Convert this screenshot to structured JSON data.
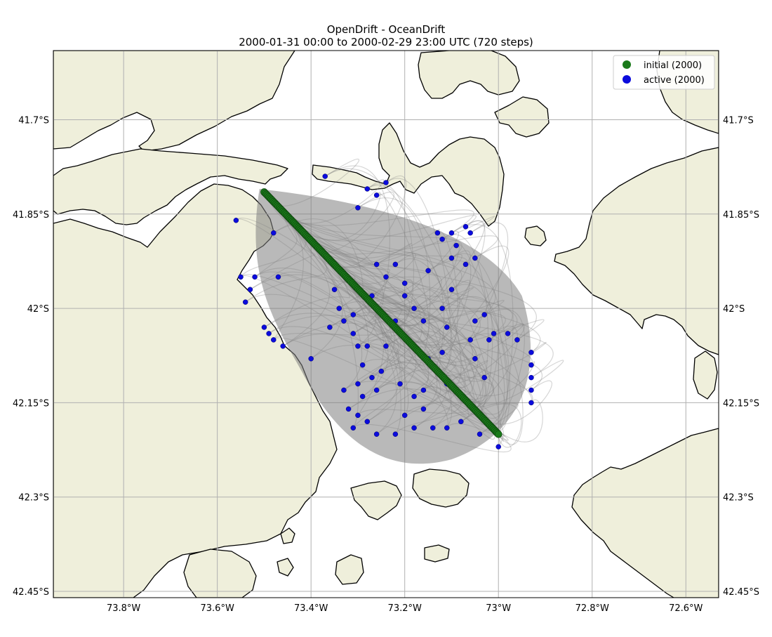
{
  "chart_data": {
    "type": "scatter",
    "title_lines": [
      "OpenDrift - OceanDrift",
      "2000-01-31 00:00 to 2000-02-29 23:00 UTC (720 steps)"
    ],
    "xlabel": "",
    "ylabel": "",
    "xlim": [
      -73.95,
      -72.53
    ],
    "ylim": [
      -42.46,
      -41.59
    ],
    "grid": true,
    "legend_placement": "top-right",
    "x_ticks": [
      {
        "value": -73.8,
        "label": "73.8°W"
      },
      {
        "value": -73.6,
        "label": "73.6°W"
      },
      {
        "value": -73.4,
        "label": "73.4°W"
      },
      {
        "value": -73.2,
        "label": "73.2°W"
      },
      {
        "value": -73.0,
        "label": "73°W"
      },
      {
        "value": -72.8,
        "label": "72.8°W"
      },
      {
        "value": -72.6,
        "label": "72.6°W"
      }
    ],
    "y_ticks": [
      {
        "value": -41.7,
        "label": "41.7°S"
      },
      {
        "value": -41.85,
        "label": "41.85°S"
      },
      {
        "value": -42.0,
        "label": "42°S"
      },
      {
        "value": -42.15,
        "label": "42.15°S"
      },
      {
        "value": -42.3,
        "label": "42.3°S"
      },
      {
        "value": -42.45,
        "label": "42.45°S"
      }
    ],
    "colors": {
      "land": "#efefdb",
      "ocean": "#ffffff",
      "coast": "#000000",
      "trajectory": "#808080",
      "initial": "#1a7a1a",
      "active": "#0b0bdc",
      "grid": "#b0b0b0"
    },
    "series": [
      {
        "name": "initial (2000)",
        "kind": "seed-line",
        "from": [
          -73.5,
          -41.815
        ],
        "to": [
          -73.0,
          -42.2
        ],
        "count": 200
      },
      {
        "name": "active (2000)",
        "kind": "points",
        "points": [
          [
            -73.37,
            -41.79
          ],
          [
            -73.28,
            -41.81
          ],
          [
            -73.26,
            -41.82
          ],
          [
            -73.3,
            -41.84
          ],
          [
            -73.24,
            -41.8
          ],
          [
            -73.56,
            -41.86
          ],
          [
            -73.48,
            -41.88
          ],
          [
            -73.52,
            -41.95
          ],
          [
            -73.55,
            -41.95
          ],
          [
            -73.53,
            -41.97
          ],
          [
            -73.54,
            -41.99
          ],
          [
            -73.47,
            -41.95
          ],
          [
            -73.5,
            -42.03
          ],
          [
            -73.49,
            -42.04
          ],
          [
            -73.48,
            -42.05
          ],
          [
            -73.46,
            -42.06
          ],
          [
            -73.4,
            -42.08
          ],
          [
            -73.35,
            -41.97
          ],
          [
            -73.36,
            -42.03
          ],
          [
            -73.34,
            -42.0
          ],
          [
            -73.33,
            -42.02
          ],
          [
            -73.31,
            -42.04
          ],
          [
            -73.3,
            -42.06
          ],
          [
            -73.29,
            -42.09
          ],
          [
            -73.3,
            -42.12
          ],
          [
            -73.29,
            -42.14
          ],
          [
            -73.3,
            -42.17
          ],
          [
            -73.32,
            -42.16
          ],
          [
            -73.33,
            -42.13
          ],
          [
            -73.31,
            -42.19
          ],
          [
            -73.28,
            -42.18
          ],
          [
            -73.26,
            -42.2
          ],
          [
            -73.22,
            -42.2
          ],
          [
            -73.18,
            -42.19
          ],
          [
            -73.14,
            -42.19
          ],
          [
            -73.11,
            -42.19
          ],
          [
            -73.08,
            -42.18
          ],
          [
            -73.05,
            -42.16
          ],
          [
            -73.03,
            -42.11
          ],
          [
            -73.02,
            -42.05
          ],
          [
            -73.01,
            -42.04
          ],
          [
            -73.03,
            -42.01
          ],
          [
            -73.05,
            -42.02
          ],
          [
            -73.06,
            -42.05
          ],
          [
            -73.05,
            -42.08
          ],
          [
            -73.11,
            -42.12
          ],
          [
            -73.12,
            -42.07
          ],
          [
            -73.11,
            -42.03
          ],
          [
            -73.12,
            -42.0
          ],
          [
            -73.1,
            -41.97
          ],
          [
            -73.16,
            -42.02
          ],
          [
            -73.18,
            -42.0
          ],
          [
            -73.2,
            -41.98
          ],
          [
            -73.22,
            -42.02
          ],
          [
            -73.24,
            -42.06
          ],
          [
            -73.25,
            -42.1
          ],
          [
            -73.21,
            -42.12
          ],
          [
            -73.18,
            -42.14
          ],
          [
            -73.16,
            -42.16
          ],
          [
            -73.2,
            -42.17
          ],
          [
            -73.26,
            -42.13
          ],
          [
            -73.27,
            -42.11
          ],
          [
            -73.28,
            -42.06
          ],
          [
            -73.31,
            -42.01
          ],
          [
            -73.27,
            -41.98
          ],
          [
            -73.24,
            -41.95
          ],
          [
            -73.26,
            -41.93
          ],
          [
            -73.22,
            -41.93
          ],
          [
            -73.2,
            -41.96
          ],
          [
            -73.15,
            -41.94
          ],
          [
            -73.1,
            -41.92
          ],
          [
            -73.07,
            -41.93
          ],
          [
            -73.05,
            -41.92
          ],
          [
            -72.93,
            -42.07
          ],
          [
            -72.93,
            -42.09
          ],
          [
            -72.93,
            -42.11
          ],
          [
            -72.93,
            -42.13
          ],
          [
            -72.93,
            -42.15
          ],
          [
            -72.96,
            -42.05
          ],
          [
            -72.98,
            -42.04
          ],
          [
            -73.0,
            -42.22
          ],
          [
            -73.04,
            -42.2
          ],
          [
            -73.12,
            -41.89
          ],
          [
            -73.09,
            -41.9
          ],
          [
            -73.1,
            -41.88
          ],
          [
            -73.07,
            -41.87
          ],
          [
            -73.13,
            -41.88
          ],
          [
            -73.06,
            -41.88
          ],
          [
            -73.15,
            -42.08
          ],
          [
            -73.16,
            -42.13
          ]
        ]
      }
    ]
  }
}
